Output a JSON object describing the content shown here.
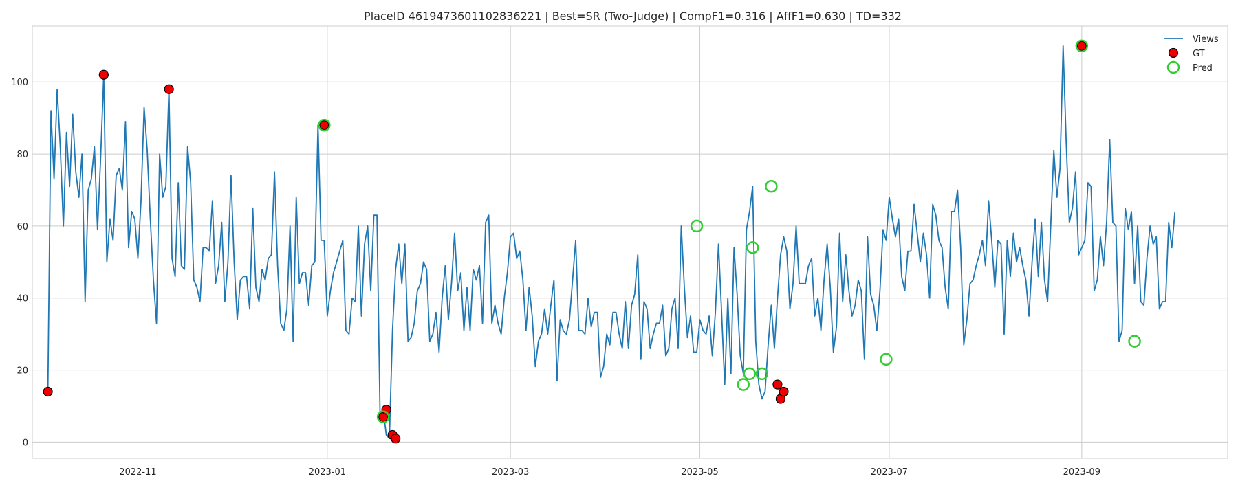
{
  "chart_data": {
    "type": "line",
    "title": "PlaceID 4619473601102836221 | Best=SR (Two-Judge) | CompF1=0.316 | AffF1=0.630 | TD=332",
    "xlabel": "",
    "ylabel": "",
    "x_axis": "date",
    "xlim": [
      "2022-09-28",
      "2023-10-18"
    ],
    "ylim": [
      -4.5,
      115.5
    ],
    "grid": true,
    "legend_position": "top-right",
    "x_ticks": [
      {
        "date": "2022-11-01",
        "label": "2022-11"
      },
      {
        "date": "2023-01-01",
        "label": "2023-01"
      },
      {
        "date": "2023-03-01",
        "label": "2023-03"
      },
      {
        "date": "2023-05-01",
        "label": "2023-05"
      },
      {
        "date": "2023-07-01",
        "label": "2023-07"
      },
      {
        "date": "2023-09-01",
        "label": "2023-09"
      }
    ],
    "y_ticks": [
      0,
      20,
      40,
      60,
      80,
      100
    ],
    "colors": {
      "views": "#1f77b4",
      "gt_fill": "#ee0000",
      "gt_edge": "#000000",
      "pred": "#32cd32",
      "grid": "#cccccc",
      "spine": "#cccccc"
    },
    "series": [
      {
        "name": "Views",
        "start_date": "2022-10-03",
        "step_days": 1,
        "values": [
          14,
          92,
          73,
          98,
          82,
          60,
          86,
          71,
          91,
          75,
          68,
          80,
          39,
          70,
          73,
          82,
          59,
          79,
          102,
          50,
          62,
          56,
          74,
          76,
          70,
          89,
          54,
          64,
          62,
          51,
          67,
          93,
          81,
          62,
          45,
          33,
          80,
          68,
          71,
          98,
          51,
          46,
          72,
          49,
          48,
          82,
          72,
          45,
          43,
          39,
          54,
          54,
          53,
          67,
          44,
          49,
          61,
          39,
          50,
          74,
          50,
          34,
          45,
          46,
          46,
          37,
          65,
          43,
          39,
          48,
          45,
          51,
          52,
          75,
          49,
          33,
          31,
          37,
          60,
          28,
          68,
          44,
          47,
          47,
          38,
          49,
          50,
          88,
          56,
          56,
          35,
          42,
          47,
          50,
          53,
          56,
          31,
          30,
          40,
          39,
          60,
          35,
          55,
          60,
          42,
          63,
          63,
          7,
          9,
          2,
          1,
          31,
          48,
          55,
          44,
          55,
          28,
          29,
          33,
          42,
          44,
          50,
          48,
          28,
          30,
          36,
          25,
          40,
          49,
          34,
          44,
          58,
          42,
          47,
          31,
          43,
          31,
          48,
          45,
          49,
          33,
          61,
          63,
          33,
          38,
          33,
          30,
          40,
          47,
          57,
          58,
          51,
          53,
          45,
          31,
          43,
          35,
          21,
          28,
          30,
          37,
          30,
          38,
          45,
          17,
          34,
          31,
          30,
          34,
          45,
          56,
          31,
          31,
          30,
          40,
          32,
          36,
          36,
          18,
          21,
          30,
          27,
          36,
          36,
          30,
          26,
          39,
          26,
          38,
          41,
          52,
          23,
          39,
          37,
          26,
          30,
          33,
          33,
          38,
          24,
          26,
          37,
          40,
          26,
          60,
          43,
          29,
          35,
          25,
          25,
          34,
          31,
          30,
          35,
          24,
          36,
          55,
          36,
          16,
          40,
          19,
          54,
          41,
          24,
          19,
          59,
          64,
          71,
          28,
          16,
          12,
          14,
          27,
          38,
          26,
          40,
          52,
          57,
          53,
          37,
          44,
          60,
          44,
          44,
          44,
          49,
          51,
          35,
          40,
          31,
          45,
          55,
          43,
          25,
          32,
          58,
          39,
          52,
          42,
          35,
          38,
          45,
          42,
          23,
          57,
          41,
          38,
          31,
          42,
          59,
          56,
          68,
          62,
          57,
          62,
          46,
          42,
          53,
          53,
          66,
          58,
          50,
          58,
          52,
          40,
          66,
          63,
          56,
          54,
          43,
          37,
          64,
          64,
          70,
          54,
          27,
          34,
          44,
          45,
          49,
          52,
          56,
          49,
          67,
          56,
          43,
          56,
          55,
          30,
          56,
          46,
          58,
          50,
          54,
          49,
          45,
          35,
          50,
          62,
          46,
          61,
          45,
          39,
          60,
          81,
          68,
          76,
          110,
          83,
          61,
          65,
          75,
          52,
          54,
          56,
          72,
          71,
          42,
          45,
          57,
          49,
          61,
          84,
          61,
          60,
          28,
          31,
          65,
          59,
          64,
          44,
          60,
          39,
          38,
          51,
          60,
          55,
          57,
          37,
          39,
          39,
          61,
          54,
          64
        ]
      }
    ],
    "gt_points": [
      {
        "date": "2022-10-03",
        "value": 14
      },
      {
        "date": "2022-10-21",
        "value": 102
      },
      {
        "date": "2022-11-11",
        "value": 98
      },
      {
        "date": "2022-12-31",
        "value": 88
      },
      {
        "date": "2023-01-19",
        "value": 7
      },
      {
        "date": "2023-01-20",
        "value": 9
      },
      {
        "date": "2023-01-22",
        "value": 2
      },
      {
        "date": "2023-01-23",
        "value": 1
      },
      {
        "date": "2023-05-26",
        "value": 16
      },
      {
        "date": "2023-05-27",
        "value": 12
      },
      {
        "date": "2023-05-28",
        "value": 14
      },
      {
        "date": "2023-09-01",
        "value": 110
      }
    ],
    "pred_points": [
      {
        "date": "2022-12-31",
        "value": 88
      },
      {
        "date": "2023-01-19",
        "value": 7
      },
      {
        "date": "2023-04-30",
        "value": 60
      },
      {
        "date": "2023-05-15",
        "value": 16
      },
      {
        "date": "2023-05-17",
        "value": 19
      },
      {
        "date": "2023-05-18",
        "value": 54
      },
      {
        "date": "2023-05-21",
        "value": 19
      },
      {
        "date": "2023-05-24",
        "value": 71
      },
      {
        "date": "2023-06-30",
        "value": 23
      },
      {
        "date": "2023-09-01",
        "value": 110
      },
      {
        "date": "2023-09-18",
        "value": 28
      }
    ],
    "legend": [
      {
        "label": "Views",
        "kind": "line"
      },
      {
        "label": "GT",
        "kind": "gt"
      },
      {
        "label": "Pred",
        "kind": "pred"
      }
    ]
  }
}
